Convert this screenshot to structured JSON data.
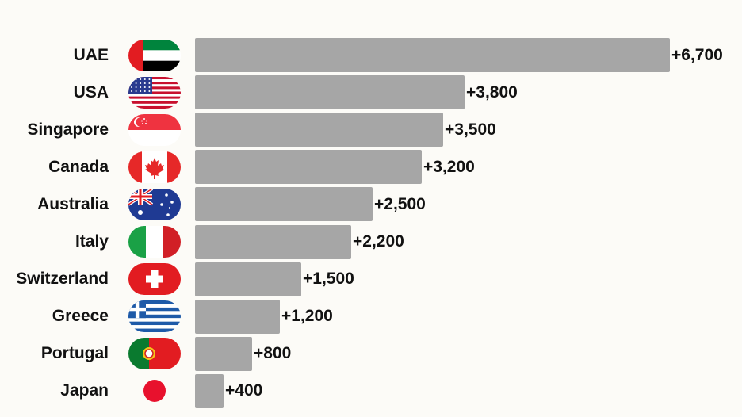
{
  "chart_data": {
    "type": "bar",
    "orientation": "horizontal",
    "categories": [
      "UAE",
      "USA",
      "Singapore",
      "Canada",
      "Australia",
      "Italy",
      "Switzerland",
      "Greece",
      "Portugal",
      "Japan"
    ],
    "values": [
      6700,
      3800,
      3500,
      3200,
      2500,
      2200,
      1500,
      1200,
      800,
      400
    ],
    "value_labels": [
      "+6,700",
      "+3,800",
      "+3,500",
      "+3,200",
      "+2,500",
      "+2,200",
      "+1,500",
      "+1,200",
      "+800",
      "+400"
    ],
    "flags": [
      "uae-flag-icon",
      "usa-flag-icon",
      "singapore-flag-icon",
      "canada-flag-icon",
      "australia-flag-icon",
      "italy-flag-icon",
      "switzerland-flag-icon",
      "greece-flag-icon",
      "portugal-flag-icon",
      "japan-flag-icon"
    ],
    "title": "",
    "xlabel": "",
    "ylabel": "",
    "xlim": [
      0,
      6700
    ],
    "grid": false,
    "bar_color": "#a6a6a6",
    "background": "#fcfbf7"
  }
}
